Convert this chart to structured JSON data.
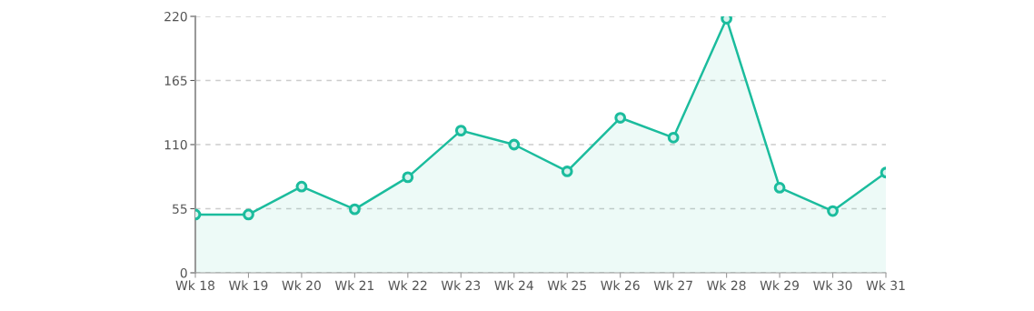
{
  "chart_data": {
    "type": "area",
    "categories": [
      "Wk 18",
      "Wk 19",
      "Wk 20",
      "Wk 21",
      "Wk 22",
      "Wk 23",
      "Wk 24",
      "Wk 25",
      "Wk 26",
      "Wk 27",
      "Wk 28",
      "Wk 29",
      "Wk 30",
      "Wk 31"
    ],
    "series": [
      {
        "color": "#1bbc9d",
        "values": [
          50,
          50,
          74,
          54.5,
          82,
          122,
          110,
          87,
          133,
          116,
          218,
          73,
          53,
          86
        ]
      }
    ],
    "ylim": [
      0,
      220
    ],
    "yticks": [
      0,
      55,
      110,
      165,
      220
    ],
    "grid": "y",
    "marker": "circle",
    "line_style": "solid"
  }
}
